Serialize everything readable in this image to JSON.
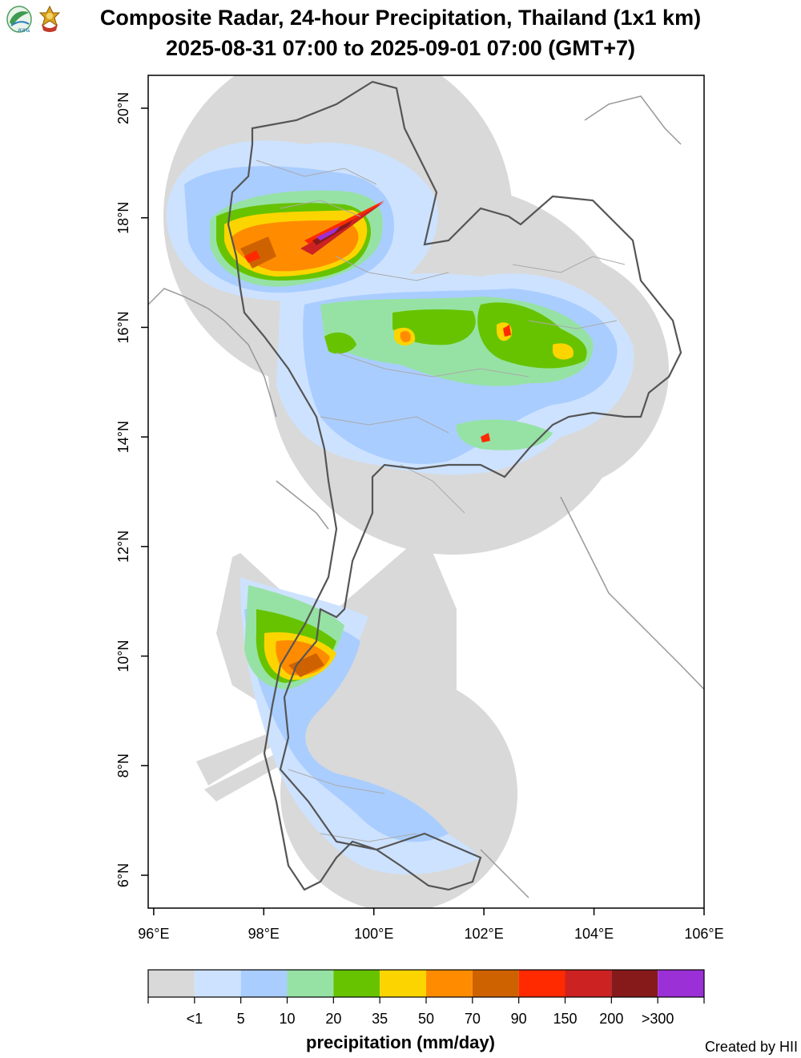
{
  "title": {
    "line1": "Composite Radar, 24-hour Precipitation, Thailand (1x1 km)",
    "line2": "2025-08-31 07:00 to 2025-09-01 07:00 (GMT+7)"
  },
  "logos": {
    "left_logo_text": "สสน",
    "left_logo_icon": "hii-leaf-logo-icon",
    "right_logo_icon": "royal-emblem-icon"
  },
  "axes": {
    "x_ticks": [
      "96°E",
      "98°E",
      "100°E",
      "102°E",
      "104°E",
      "106°E"
    ],
    "x_values": [
      96,
      98,
      100,
      102,
      104,
      106
    ],
    "y_ticks": [
      "6°N",
      "8°N",
      "10°N",
      "12°N",
      "14°N",
      "16°N",
      "18°N",
      "20°N"
    ],
    "y_values": [
      6,
      8,
      10,
      12,
      14,
      16,
      18,
      20
    ],
    "lon_range": [
      95.9,
      106.0
    ],
    "lat_range": [
      5.4,
      20.6
    ]
  },
  "legend": {
    "label": "precipitation (mm/day)",
    "tick_labels": [
      "<1",
      "5",
      "10",
      "20",
      "35",
      "50",
      "70",
      "90",
      "150",
      "200",
      ">300"
    ],
    "colors": [
      "#d9d9d9",
      "#cde2ff",
      "#a9cdff",
      "#96e2a4",
      "#67c300",
      "#fcd500",
      "#ff8c00",
      "#cf6200",
      "#ff2a00",
      "#cd2222",
      "#861a1a",
      "#9b30d6"
    ]
  },
  "map_colors": {
    "radar_coverage": "#d9d9d9",
    "country_border": "#555555",
    "province_border": "#aaaaaa",
    "coastline": "#999999"
  },
  "credit": "Created by HII"
}
